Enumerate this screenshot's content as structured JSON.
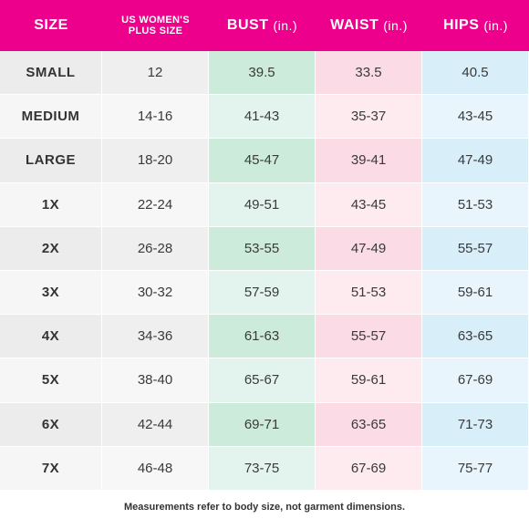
{
  "headers": {
    "size": "SIZE",
    "us_line1": "US WOMEN'S",
    "us_line2": "PLUS SIZE",
    "bust": "BUST",
    "waist": "WAIST",
    "hips": "HIPS",
    "unit": "(in.)"
  },
  "rows": [
    {
      "size": "SMALL",
      "us": "12",
      "bust": "39.5",
      "waist": "33.5",
      "hips": "40.5"
    },
    {
      "size": "MEDIUM",
      "us": "14-16",
      "bust": "41-43",
      "waist": "35-37",
      "hips": "43-45"
    },
    {
      "size": "LARGE",
      "us": "18-20",
      "bust": "45-47",
      "waist": "39-41",
      "hips": "47-49"
    },
    {
      "size": "1X",
      "us": "22-24",
      "bust": "49-51",
      "waist": "43-45",
      "hips": "51-53"
    },
    {
      "size": "2X",
      "us": "26-28",
      "bust": "53-55",
      "waist": "47-49",
      "hips": "55-57"
    },
    {
      "size": "3X",
      "us": "30-32",
      "bust": "57-59",
      "waist": "51-53",
      "hips": "59-61"
    },
    {
      "size": "4X",
      "us": "34-36",
      "bust": "61-63",
      "waist": "55-57",
      "hips": "63-65"
    },
    {
      "size": "5X",
      "us": "38-40",
      "bust": "65-67",
      "waist": "59-61",
      "hips": "67-69"
    },
    {
      "size": "6X",
      "us": "42-44",
      "bust": "69-71",
      "waist": "63-65",
      "hips": "71-73"
    },
    {
      "size": "7X",
      "us": "46-48",
      "bust": "73-75",
      "waist": "67-69",
      "hips": "75-77"
    }
  ],
  "footnote": "Measurements refer to body size, not garment dimensions.",
  "colors": {
    "header": "#ec008c",
    "bust": "#cdebdb",
    "waist": "#fbdbe6",
    "hips": "#d8eef9"
  }
}
